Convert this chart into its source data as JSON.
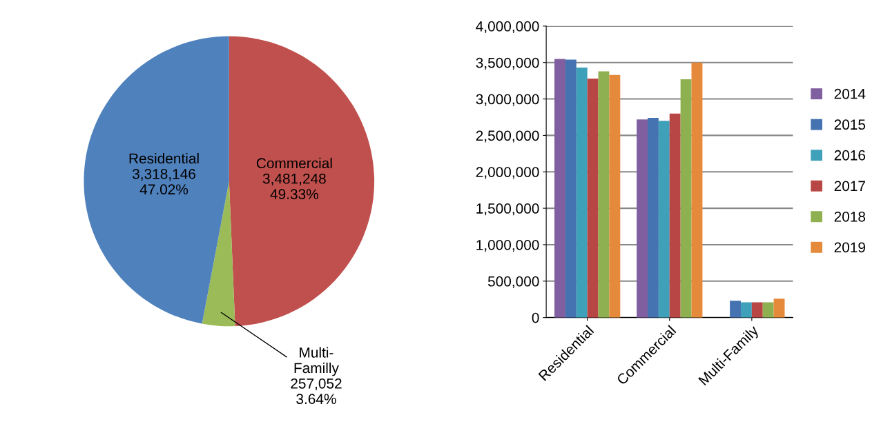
{
  "chart_data": [
    {
      "type": "pie",
      "categories": [
        "Commercial",
        "Multi-Familly",
        "Residential"
      ],
      "values": [
        3481248,
        257052,
        3318146
      ],
      "colors": [
        "#c0504d",
        "#9bbb59",
        "#4f81bd"
      ],
      "value_labels": [
        "3,481,248\n49.33%",
        "257,052\n3.64%",
        "3,318,146\n47.02%"
      ]
    },
    {
      "type": "bar",
      "categories": [
        "Residential",
        "Commercial",
        "Multi-Family"
      ],
      "series": [
        {
          "name": "2014",
          "color": "#7f5f9f",
          "values": [
            3550000,
            2720000,
            null
          ]
        },
        {
          "name": "2015",
          "color": "#4572b0",
          "values": [
            3540000,
            2740000,
            230000
          ]
        },
        {
          "name": "2016",
          "color": "#3fa0ba",
          "values": [
            3430000,
            2700000,
            210000
          ]
        },
        {
          "name": "2017",
          "color": "#b84644",
          "values": [
            3280000,
            2800000,
            210000
          ]
        },
        {
          "name": "2018",
          "color": "#8fb050",
          "values": [
            3380000,
            3270000,
            210000
          ]
        },
        {
          "name": "2019",
          "color": "#e5893a",
          "values": [
            3330000,
            3500000,
            260000
          ]
        }
      ],
      "ylim": [
        0,
        4000000
      ],
      "yticks": [
        {
          "value": 0,
          "label": "0"
        },
        {
          "value": 500000,
          "label": "500,000"
        },
        {
          "value": 1000000,
          "label": "1,000,000"
        },
        {
          "value": 1500000,
          "label": "1,500,000"
        },
        {
          "value": 2000000,
          "label": "2,000,000"
        },
        {
          "value": 2500000,
          "label": "2,500,000"
        },
        {
          "value": 3000000,
          "label": "3,000,000"
        },
        {
          "value": 3500000,
          "label": "3,500,000"
        },
        {
          "value": 4000000,
          "label": "4,000,000"
        }
      ],
      "grid": "y",
      "legend": "right"
    }
  ]
}
